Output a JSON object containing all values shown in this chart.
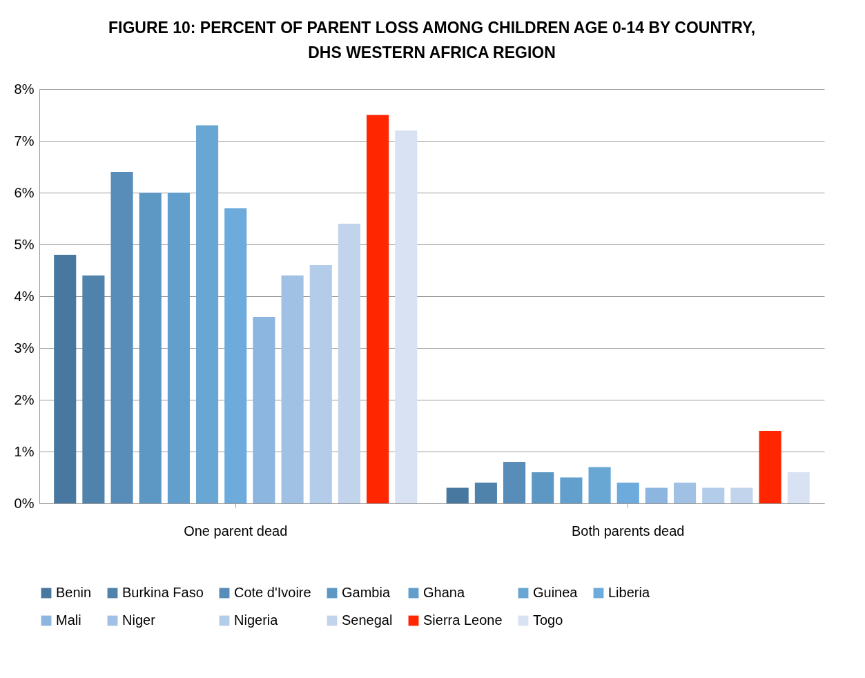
{
  "chart_data": {
    "type": "bar",
    "title": "FIGURE 10:  PERCENT OF PARENT LOSS AMONG CHILDREN AGE 0-14 BY COUNTRY, DHS WESTERN AFRICA REGION",
    "categories": [
      "One parent dead",
      "Both parents dead"
    ],
    "series": [
      {
        "name": "Benin",
        "color": "#4878a0",
        "values": [
          4.8,
          0.3
        ]
      },
      {
        "name": "Burkina Faso",
        "color": "#5083ab",
        "values": [
          4.4,
          0.4
        ]
      },
      {
        "name": "Cote d'Ivoire",
        "color": "#578db8",
        "values": [
          6.4,
          0.8
        ]
      },
      {
        "name": "Gambia",
        "color": "#5d97c3",
        "values": [
          6.0,
          0.6
        ]
      },
      {
        "name": "Ghana",
        "color": "#639fcc",
        "values": [
          6.0,
          0.5
        ]
      },
      {
        "name": "Guinea",
        "color": "#68a6d4",
        "values": [
          7.3,
          0.7
        ]
      },
      {
        "name": "Liberia",
        "color": "#6dabdc",
        "values": [
          5.7,
          0.4
        ]
      },
      {
        "name": "Mali",
        "color": "#8cb5df",
        "values": [
          3.6,
          0.3
        ]
      },
      {
        "name": "Niger",
        "color": "#a1c1e4",
        "values": [
          4.4,
          0.4
        ]
      },
      {
        "name": "Nigeria",
        "color": "#b2cce9",
        "values": [
          4.6,
          0.3
        ]
      },
      {
        "name": "Senegal",
        "color": "#c2d4ec",
        "values": [
          5.4,
          0.3
        ]
      },
      {
        "name": "Sierra Leone",
        "color": "#ff2600",
        "values": [
          7.5,
          1.4
        ]
      },
      {
        "name": "Togo",
        "color": "#d9e2f2",
        "values": [
          7.2,
          0.6
        ]
      }
    ],
    "ylim": [
      0,
      8
    ],
    "yticks": [
      {
        "value": 0,
        "label": "0%"
      },
      {
        "value": 1,
        "label": "1%"
      },
      {
        "value": 2,
        "label": "2%"
      },
      {
        "value": 3,
        "label": "3%"
      },
      {
        "value": 4,
        "label": "4%"
      },
      {
        "value": 5,
        "label": "5%"
      },
      {
        "value": 6,
        "label": "6%"
      },
      {
        "value": 7,
        "label": "7%"
      },
      {
        "value": 8,
        "label": "8%"
      }
    ],
    "grid": "y",
    "legend": "bottom"
  }
}
